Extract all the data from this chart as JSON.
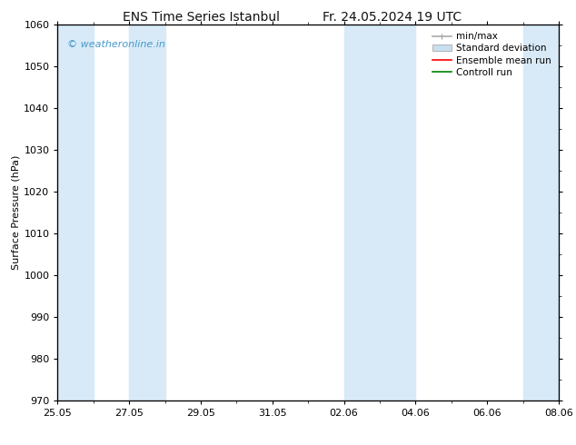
{
  "title_left": "ENS Time Series Istanbul",
  "title_right": "Fr. 24.05.2024 19 UTC",
  "ylabel": "Surface Pressure (hPa)",
  "ylim": [
    970,
    1060
  ],
  "yticks": [
    970,
    980,
    990,
    1000,
    1010,
    1020,
    1030,
    1040,
    1050,
    1060
  ],
  "xlabel_ticks": [
    "25.05",
    "27.05",
    "29.05",
    "31.05",
    "02.06",
    "04.06",
    "06.06",
    "08.06"
  ],
  "watermark": "© weatheronline.in",
  "watermark_color": "#4499cc",
  "bg_color": "#ffffff",
  "plot_bg_color": "#ffffff",
  "shaded_color": "#d8eaf7",
  "legend_items": [
    {
      "label": "min/max",
      "color": "#999999",
      "type": "errorbar"
    },
    {
      "label": "Standard deviation",
      "color": "#c8dff0",
      "type": "box"
    },
    {
      "label": "Ensemble mean run",
      "color": "#ff0000",
      "type": "line"
    },
    {
      "label": "Controll run",
      "color": "#008000",
      "type": "line"
    }
  ],
  "font_size_title": 10,
  "font_size_axis": 8,
  "font_size_tick": 8,
  "font_size_legend": 7.5,
  "font_size_watermark": 8,
  "tick_color": "#000000",
  "axis_color": "#000000",
  "x_min": 0,
  "x_max": 14,
  "shaded_ranges": [
    [
      0,
      1
    ],
    [
      2,
      3
    ],
    [
      8,
      9
    ],
    [
      9,
      10
    ],
    [
      13,
      14
    ]
  ]
}
